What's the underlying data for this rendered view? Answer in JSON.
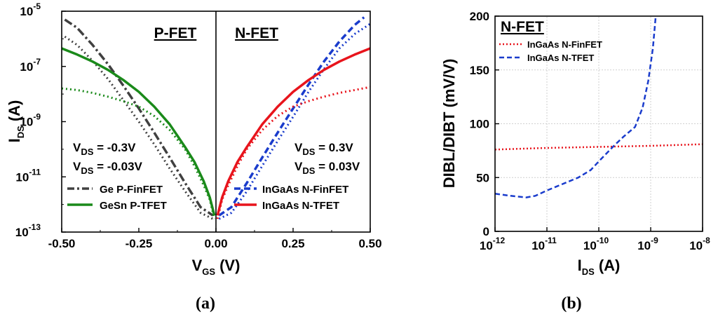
{
  "chart_data": [
    {
      "type": "line",
      "panel_caption": "a",
      "region_labels": [
        "P-FET",
        "N-FET"
      ],
      "xlabel": "V",
      "xlabel_sub": "GS",
      "xlabel_unit": "(V)",
      "ylabel": "I",
      "ylabel_sub": "DS",
      "ylabel_unit": "(A)",
      "yscale": "log",
      "xlim": [
        -0.5,
        0.5
      ],
      "ylim": [
        1e-13,
        1e-05
      ],
      "x_ticks": [
        -0.5,
        -0.25,
        0.0,
        0.25,
        0.5
      ],
      "x_tick_labels": [
        "-0.50",
        "-0.25",
        "0.00",
        "0.25",
        "0.50"
      ],
      "y_ticks": [
        1e-13,
        1e-11,
        1e-09,
        1e-07,
        1e-05
      ],
      "y_tick_labels": [
        {
          "base": "10",
          "exp": "-13"
        },
        {
          "base": "10",
          "exp": "-11"
        },
        {
          "base": "10",
          "exp": "-9"
        },
        {
          "base": "10",
          "exp": "-7"
        },
        {
          "base": "10",
          "exp": "-5"
        }
      ],
      "annotations": {
        "p_side": [
          {
            "label": "V",
            "sub": "DS",
            "value": " = -0.3V"
          },
          {
            "label": "V",
            "sub": "DS",
            "value": " = -0.03V"
          }
        ],
        "n_side": [
          {
            "label": "V",
            "sub": "DS",
            "value": " = 0.3V"
          },
          {
            "label": "V",
            "sub": "DS",
            "value": " = 0.03V"
          }
        ]
      },
      "series": [
        {
          "name": "Ge P-FinFET",
          "vds": "-0.3V",
          "color": "#404040",
          "dash": "dashdot",
          "legend": true,
          "x": [
            -0.49,
            -0.45,
            -0.4,
            -0.35,
            -0.3,
            -0.25,
            -0.2,
            -0.15,
            -0.1,
            -0.05,
            -0.01
          ],
          "y": [
            5e-06,
            2.5e-06,
            6e-07,
            1.2e-07,
            2e-08,
            3e-09,
            4e-10,
            5e-11,
            6e-12,
            8e-13,
            4e-13
          ]
        },
        {
          "name": "Ge P-FinFET (-0.03V)",
          "vds": "-0.03V",
          "color": "#404040",
          "dash": "dot",
          "legend": false,
          "x": [
            -0.49,
            -0.45,
            -0.4,
            -0.35,
            -0.3,
            -0.25,
            -0.2,
            -0.15,
            -0.1,
            -0.05,
            -0.01
          ],
          "y": [
            1.2e-06,
            6e-07,
            1.6e-07,
            3.5e-08,
            6e-09,
            1e-09,
            1.5e-10,
            2e-11,
            3e-12,
            5e-13,
            3e-13
          ]
        },
        {
          "name": "GeSn P-TFET",
          "vds": "-0.3V",
          "color": "#1a8a1a",
          "dash": "solid",
          "legend": true,
          "x": [
            -0.5,
            -0.45,
            -0.4,
            -0.35,
            -0.3,
            -0.25,
            -0.2,
            -0.15,
            -0.1,
            -0.07,
            -0.04,
            -0.02,
            -0.005
          ],
          "y": [
            4.5e-07,
            2.7e-07,
            1.5e-07,
            7.5e-08,
            3.2e-08,
            1.2e-08,
            3.5e-09,
            8e-10,
            1.2e-10,
            3.5e-11,
            7e-12,
            1.8e-12,
            4e-13
          ]
        },
        {
          "name": "GeSn P-TFET (-0.03V)",
          "vds": "-0.03V",
          "color": "#1a8a1a",
          "dash": "dot",
          "legend": false,
          "x": [
            -0.5,
            -0.45,
            -0.4,
            -0.35,
            -0.3,
            -0.25,
            -0.2,
            -0.15,
            -0.1,
            -0.07,
            -0.04,
            -0.02,
            -0.005
          ],
          "y": [
            1.6e-08,
            1.4e-08,
            1.1e-08,
            8e-09,
            5.5e-09,
            3.5e-09,
            1.6e-09,
            5e-10,
            1e-10,
            2.5e-11,
            5e-12,
            1.5e-12,
            3e-13
          ]
        },
        {
          "name": "InGaAs N-FinFET",
          "vds": "0.3V",
          "color": "#1a3ccc",
          "dash": "dash",
          "legend": true,
          "x": [
            0.01,
            0.05,
            0.1,
            0.15,
            0.2,
            0.25,
            0.3,
            0.35,
            0.4,
            0.45,
            0.48
          ],
          "y": [
            4e-13,
            8e-13,
            6e-12,
            5e-11,
            4e-10,
            3e-09,
            2.2e-08,
            1.5e-07,
            8e-07,
            3.2e-06,
            6e-06
          ]
        },
        {
          "name": "InGaAs N-FinFET (0.03V)",
          "vds": "0.03V",
          "color": "#1a3ccc",
          "dash": "dot",
          "legend": false,
          "x": [
            0.01,
            0.05,
            0.1,
            0.15,
            0.2,
            0.25,
            0.3,
            0.35,
            0.4,
            0.45,
            0.5
          ],
          "y": [
            3e-13,
            5e-13,
            3e-12,
            2.5e-11,
            2e-10,
            1.5e-09,
            1.2e-08,
            8e-08,
            4.5e-07,
            1.5e-06,
            3.5e-06
          ]
        },
        {
          "name": "InGaAs N-TFET",
          "vds": "0.3V",
          "color": "#e8141c",
          "dash": "solid",
          "legend": true,
          "x": [
            0.005,
            0.02,
            0.04,
            0.07,
            0.1,
            0.15,
            0.2,
            0.25,
            0.3,
            0.35,
            0.4,
            0.45,
            0.5
          ],
          "y": [
            4e-13,
            1.8e-12,
            7e-12,
            3.5e-11,
            1.2e-10,
            8e-10,
            3.5e-09,
            1.2e-08,
            3.2e-08,
            7.5e-08,
            1.5e-07,
            2.7e-07,
            4.5e-07
          ]
        },
        {
          "name": "InGaAs N-TFET (0.03V)",
          "vds": "0.03V",
          "color": "#e8141c",
          "dash": "dot",
          "legend": false,
          "x": [
            0.005,
            0.02,
            0.04,
            0.07,
            0.1,
            0.15,
            0.2,
            0.25,
            0.3,
            0.35,
            0.4,
            0.45,
            0.5
          ],
          "y": [
            3e-13,
            1.5e-12,
            5e-12,
            2.5e-11,
            1e-10,
            5e-10,
            1.6e-09,
            3.5e-09,
            5.5e-09,
            8e-09,
            1.1e-08,
            1.4e-08,
            1.8e-08
          ]
        }
      ]
    },
    {
      "type": "line",
      "panel_caption": "b",
      "title": "N-FET",
      "xlabel": "I",
      "xlabel_sub": "DS",
      "xlabel_unit": "(A)",
      "ylabel": "DIBL/DIBT (mV/V)",
      "xscale": "log",
      "xlim": [
        1e-12,
        1e-08
      ],
      "ylim": [
        0,
        200
      ],
      "x_ticks": [
        1e-12,
        1e-11,
        1e-10,
        1e-09,
        1e-08
      ],
      "x_tick_labels": [
        {
          "base": "10",
          "exp": "-12"
        },
        {
          "base": "10",
          "exp": "-11"
        },
        {
          "base": "10",
          "exp": "-10"
        },
        {
          "base": "10",
          "exp": "-9"
        },
        {
          "base": "10",
          "exp": "-8"
        }
      ],
      "y_ticks": [
        0,
        50,
        100,
        150,
        200
      ],
      "y_tick_labels": [
        "0",
        "50",
        "100",
        "150",
        "200"
      ],
      "series": [
        {
          "name": "InGaAs N-FinFET",
          "color": "#e8141c",
          "dash": "dot",
          "x": [
            1e-12,
            1e-11,
            1e-10,
            1e-09,
            1e-08
          ],
          "y": [
            76,
            77.5,
            78.5,
            79.5,
            81
          ]
        },
        {
          "name": "InGaAs N-TFET",
          "color": "#1a3ccc",
          "dash": "dash",
          "x": [
            1e-12,
            2e-12,
            4e-12,
            6e-12,
            1e-11,
            2e-11,
            4e-11,
            7e-11,
            1e-10,
            2e-10,
            3e-10,
            5e-10,
            7e-10,
            9e-10,
            1.1e-09,
            1.25e-09
          ],
          "y": [
            35,
            33,
            31.5,
            33,
            38,
            44,
            50,
            57,
            65,
            80,
            88,
            97,
            115,
            140,
            170,
            200
          ]
        }
      ]
    }
  ]
}
